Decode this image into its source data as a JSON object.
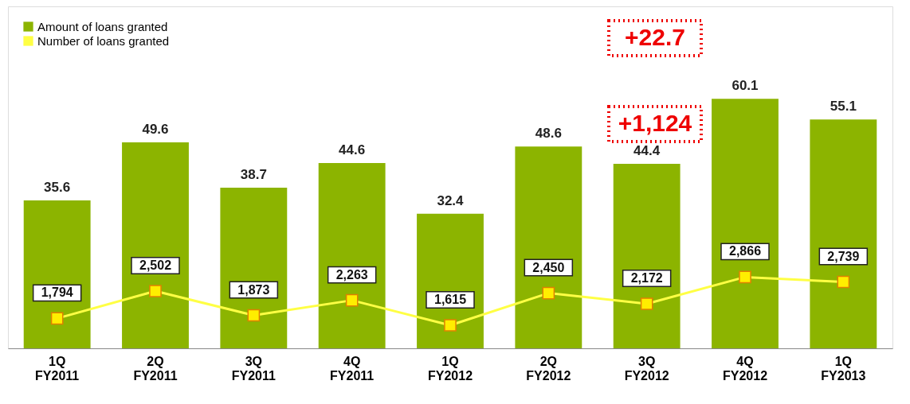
{
  "chart_data": {
    "type": "bar",
    "categories": [
      "1Q FY2011",
      "2Q FY2011",
      "3Q FY2011",
      "4Q FY2011",
      "1Q FY2012",
      "2Q FY2012",
      "3Q FY2012",
      "4Q FY2012",
      "1Q FY2013"
    ],
    "series": [
      {
        "name": "Amount of loans granted",
        "color": "#8cb400",
        "values": [
          35.6,
          49.6,
          38.7,
          44.6,
          32.4,
          48.6,
          44.4,
          60.1,
          55.1
        ]
      },
      {
        "name": "Number of loans granted",
        "type": "line",
        "axis": "y2",
        "color": "#ffff44",
        "marker": "square",
        "values": [
          1794,
          2502,
          1873,
          2263,
          1615,
          2450,
          2172,
          2866,
          2739
        ],
        "value_labels": [
          "1,794",
          "2,502",
          "1,873",
          "2,263",
          "1,615",
          "2,450",
          "2,172",
          "2,866",
          "2,739"
        ]
      }
    ],
    "data_labels": true,
    "legend": "top left",
    "annotations": [
      "+22.7",
      "+1,124"
    ]
  }
}
